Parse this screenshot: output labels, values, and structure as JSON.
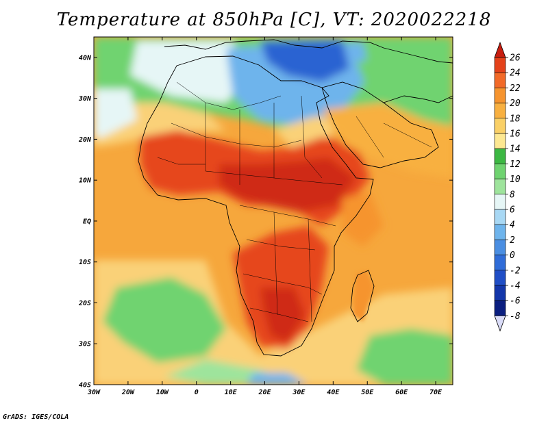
{
  "title": "Temperature at 850hPa [C], VT: 2020022218",
  "credit": "GrADS: IGES/COLA",
  "colors": {
    "ocean_warm": "#f6a73c",
    "ocean_mild": "#fad178",
    "ocean_cool": "#a6dc8a",
    "land_hot": "#e6461d",
    "land_very_hot": "#cf2a12",
    "cold_north": "#6ea8e6",
    "cold_core": "#2c64d2",
    "green_band": "#43c24b",
    "coast": "#000000"
  },
  "chart_data": {
    "type": "heatmap",
    "variable": "Temperature at 850hPa",
    "units": "C",
    "valid_time": "2020022218",
    "lon_range": [
      -30,
      75
    ],
    "lat_range": [
      -40,
      45
    ],
    "x_ticks": [
      "30W",
      "20W",
      "10W",
      "0",
      "10E",
      "20E",
      "30E",
      "40E",
      "50E",
      "60E",
      "70E"
    ],
    "y_ticks": [
      "40N",
      "30N",
      "20N",
      "10N",
      "EQ",
      "10S",
      "20S",
      "30S",
      "40S"
    ],
    "colorbar": {
      "levels": [
        "26",
        "24",
        "22",
        "20",
        "18",
        "16",
        "14",
        "12",
        "10",
        "8",
        "6",
        "4",
        "2",
        "0",
        "-2",
        "-4",
        "-6",
        "-8"
      ],
      "colors": [
        "#c81e10",
        "#e4421a",
        "#f26a28",
        "#f6942e",
        "#f8b040",
        "#fad066",
        "#fde892",
        "#3cb843",
        "#6fd370",
        "#9ee49c",
        "#e6f6f6",
        "#a8d8f4",
        "#6eb4ec",
        "#4a8ee2",
        "#2f6cd8",
        "#1f4ec6",
        "#1336aa",
        "#0a1e80",
        "#dadcf8"
      ]
    }
  }
}
